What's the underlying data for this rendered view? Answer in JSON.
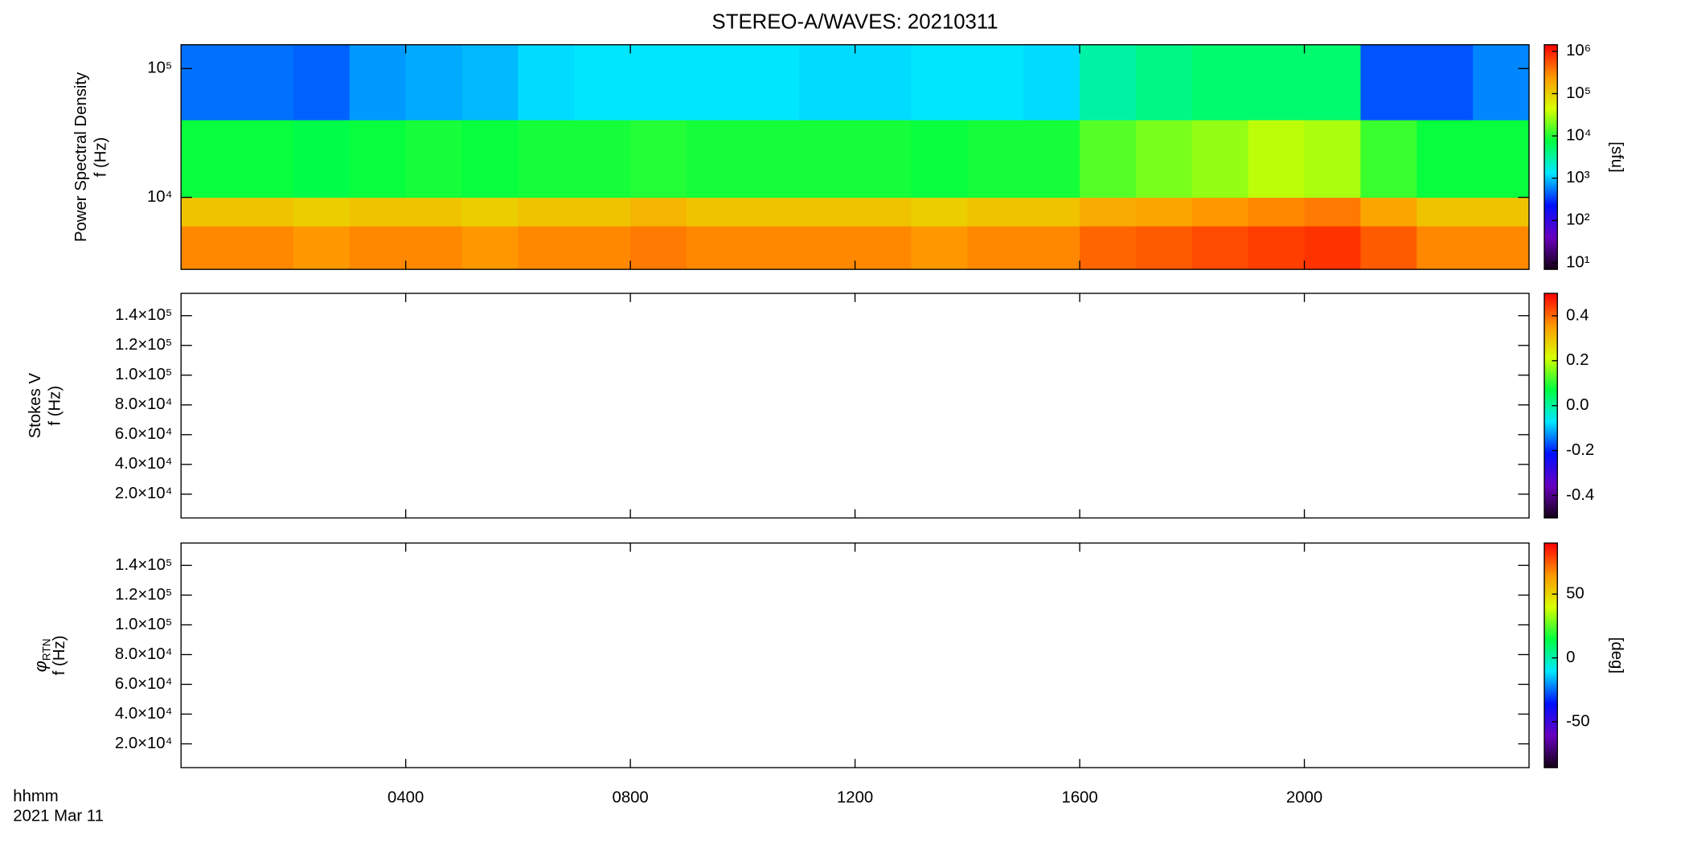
{
  "title": "STEREO-A/WAVES: 20210311",
  "colorscale": [
    "#140014",
    "#6a00c0",
    "#0010ff",
    "#00e8ff",
    "#00ff40",
    "#d8ff00",
    "#ff9800",
    "#ff0000"
  ],
  "x_axis": {
    "xlim": [
      0,
      24
    ],
    "xticks": [
      {
        "value": 4,
        "label": "0400"
      },
      {
        "value": 8,
        "label": "0800"
      },
      {
        "value": 12,
        "label": "1200"
      },
      {
        "value": 16,
        "label": "1600"
      },
      {
        "value": 20,
        "label": "2000"
      }
    ],
    "xlabel": "hhmm",
    "date": "2021 Mar 11"
  },
  "chart_data": [
    {
      "type": "heatmap",
      "ylabel": "Power Spectral Density",
      "ylabel2": "f (Hz)",
      "ylog": true,
      "ylim": [
        2760,
        153000
      ],
      "yticks": [
        {
          "value": 10000,
          "label": "10⁴"
        },
        {
          "value": 100000,
          "label": "10⁵"
        }
      ],
      "xbins": [
        0,
        1,
        2,
        3,
        4,
        5,
        6,
        7,
        8,
        9,
        10,
        11,
        12,
        13,
        14,
        15,
        16,
        17,
        18,
        19,
        20,
        21,
        22,
        23,
        24
      ],
      "ybins": [
        2760,
        6000,
        10000,
        40000,
        153000
      ],
      "z": [
        [
          300000,
          300000,
          250000,
          300000,
          300000,
          250000,
          300000,
          300000,
          350000,
          300000,
          300000,
          300000,
          300000,
          250000,
          300000,
          300000,
          450000,
          500000,
          600000,
          700000,
          800000,
          500000,
          300000,
          300000
        ],
        [
          120000,
          120000,
          100000,
          120000,
          120000,
          100000,
          120000,
          120000,
          150000,
          120000,
          120000,
          120000,
          120000,
          100000,
          120000,
          120000,
          180000,
          200000,
          250000,
          300000,
          350000,
          200000,
          120000,
          120000
        ],
        [
          8000,
          8000,
          7000,
          8000,
          9000,
          8000,
          9000,
          9000,
          10000,
          9000,
          9000,
          9000,
          9000,
          8000,
          9000,
          9000,
          15000,
          20000,
          25000,
          35000,
          30000,
          12000,
          8000,
          8000
        ],
        [
          500,
          500,
          450,
          700,
          800,
          900,
          1200,
          1300,
          1300,
          1300,
          1300,
          1200,
          1200,
          1300,
          1300,
          1200,
          3000,
          4000,
          5000,
          5000,
          5000,
          400,
          400,
          600
        ]
      ],
      "zlog": true,
      "zlim": [
        7,
        1430000
      ],
      "zticks": [
        {
          "value": 10,
          "label": "10¹"
        },
        {
          "value": 100,
          "label": "10²"
        },
        {
          "value": 1000,
          "label": "10³"
        },
        {
          "value": 10000,
          "label": "10⁴"
        },
        {
          "value": 100000,
          "label": "10⁵"
        },
        {
          "value": 1000000,
          "label": "10⁶"
        }
      ],
      "zlabel": "[sfu]"
    },
    {
      "type": "heatmap",
      "ylabel": "Stokes V",
      "ylabel2": "f (Hz)",
      "ylog": false,
      "ylim": [
        4000,
        155000
      ],
      "yticks": [
        {
          "value": 20000,
          "label": "2.0×10⁴"
        },
        {
          "value": 40000,
          "label": "4.0×10⁴"
        },
        {
          "value": 60000,
          "label": "6.0×10⁴"
        },
        {
          "value": 80000,
          "label": "8.0×10⁴"
        },
        {
          "value": 100000,
          "label": "1.0×10⁵"
        },
        {
          "value": 120000,
          "label": "1.2×10⁵"
        },
        {
          "value": 140000,
          "label": "1.4×10⁵"
        }
      ],
      "zlog": false,
      "zlim": [
        -0.5,
        0.5
      ],
      "zticks": [
        -0.4,
        -0.2,
        {
          "value": 0,
          "label": "0.0"
        },
        0.2,
        0.4
      ]
    },
    {
      "type": "heatmap",
      "ylabel": "φ",
      "ylabel_sub": "RTN",
      "ylabel2": "f (Hz)",
      "ylog": false,
      "ylim": [
        4000,
        155000
      ],
      "yticks": [
        {
          "value": 20000,
          "label": "2.0×10⁴"
        },
        {
          "value": 40000,
          "label": "4.0×10⁴"
        },
        {
          "value": 60000,
          "label": "6.0×10⁴"
        },
        {
          "value": 80000,
          "label": "8.0×10⁴"
        },
        {
          "value": 100000,
          "label": "1.0×10⁵"
        },
        {
          "value": 120000,
          "label": "1.2×10⁵"
        },
        {
          "value": 140000,
          "label": "1.4×10⁵"
        }
      ],
      "zlog": false,
      "zlim": [
        -86,
        90
      ],
      "zticks": [
        -50,
        0,
        50
      ],
      "zlabel": "[deg]"
    }
  ]
}
